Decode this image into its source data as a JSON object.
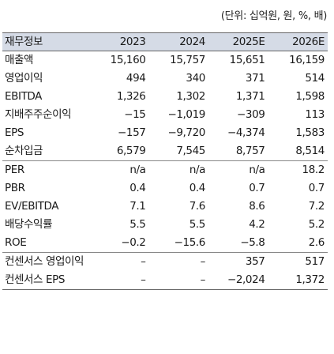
{
  "unit_note": "(단위: 십억원, 원, %, 배)",
  "table": {
    "header": {
      "label": "재무정보",
      "years": [
        "2023",
        "2024",
        "2025E",
        "2026E"
      ]
    },
    "groups": [
      {
        "rows": [
          {
            "label": "매출액",
            "values": [
              "15,160",
              "15,757",
              "15,651",
              "16,159"
            ]
          },
          {
            "label": "영업이익",
            "values": [
              "494",
              "340",
              "371",
              "514"
            ]
          },
          {
            "label": "EBITDA",
            "values": [
              "1,326",
              "1,302",
              "1,371",
              "1,598"
            ]
          },
          {
            "label": "지배주주순이익",
            "values": [
              "−15",
              "−1,019",
              "−309",
              "113"
            ]
          },
          {
            "label": "EPS",
            "values": [
              "−157",
              "−9,720",
              "−4,374",
              "1,583"
            ]
          },
          {
            "label": "순차입금",
            "values": [
              "6,579",
              "7,545",
              "8,757",
              "8,514"
            ]
          }
        ]
      },
      {
        "rows": [
          {
            "label": "PER",
            "values": [
              "n/a",
              "n/a",
              "n/a",
              "18.2"
            ]
          },
          {
            "label": "PBR",
            "values": [
              "0.4",
              "0.4",
              "0.7",
              "0.7"
            ]
          },
          {
            "label": "EV/EBITDA",
            "values": [
              "7.1",
              "7.6",
              "8.6",
              "7.2"
            ]
          },
          {
            "label": "배당수익률",
            "values": [
              "5.5",
              "5.5",
              "4.2",
              "5.2"
            ]
          },
          {
            "label": "ROE",
            "values": [
              "−0.2",
              "−15.6",
              "−5.8",
              "2.6"
            ]
          }
        ]
      },
      {
        "rows": [
          {
            "label": "컨센서스 영업이익",
            "values": [
              "–",
              "–",
              "357",
              "517"
            ]
          },
          {
            "label": "컨센서스 EPS",
            "values": [
              "–",
              "–",
              "−2,024",
              "1,372"
            ]
          }
        ]
      }
    ]
  }
}
